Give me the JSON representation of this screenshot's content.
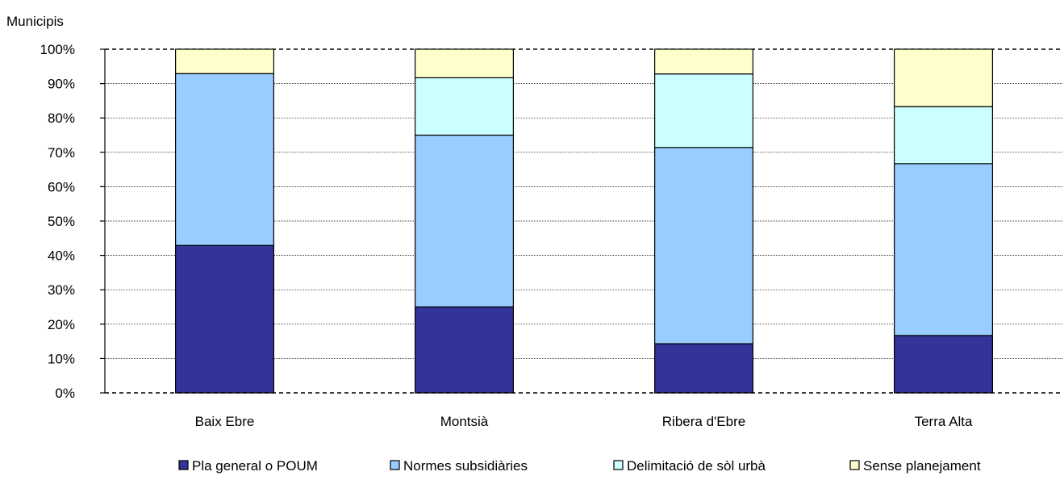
{
  "chart_data": {
    "type": "bar",
    "stacked": "percent",
    "ylabel": "Municipis",
    "ylim": [
      0,
      100
    ],
    "yticks": [
      "0%",
      "10%",
      "20%",
      "30%",
      "40%",
      "50%",
      "60%",
      "70%",
      "80%",
      "90%",
      "100%"
    ],
    "categories": [
      "Baix Ebre",
      "Montsià",
      "Ribera d'Ebre",
      "Terra Alta"
    ],
    "series": [
      {
        "name": "Pla general o POUM",
        "color": "#333399",
        "values": [
          42.9,
          25.0,
          14.3,
          16.7
        ]
      },
      {
        "name": "Normes subsidiàries",
        "color": "#99ccff",
        "values": [
          50.0,
          50.0,
          57.1,
          50.0
        ]
      },
      {
        "name": "Delimitació de sòl urbà",
        "color": "#ccffff",
        "values": [
          0.0,
          16.7,
          21.4,
          16.6
        ]
      },
      {
        "name": "Sense planejament",
        "color": "#ffffcc",
        "values": [
          7.1,
          8.3,
          7.2,
          16.7
        ]
      }
    ],
    "grid": true,
    "legend_position": "bottom"
  }
}
